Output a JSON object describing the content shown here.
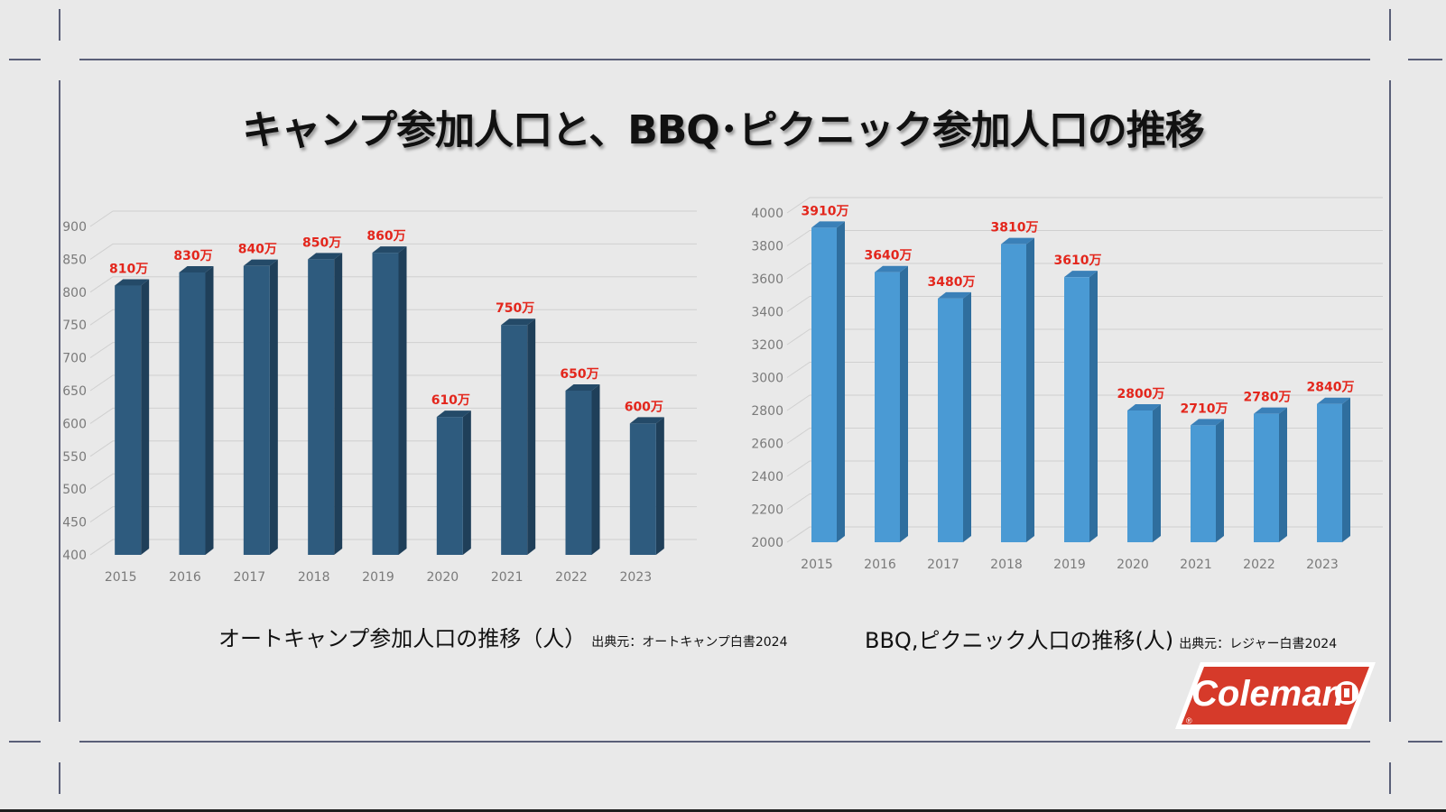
{
  "title": "キャンプ参加人口と、BBQ･ピクニック参加人口の推移",
  "colors": {
    "left_bar": "#2e5b7e",
    "left_bar_side": "#1f3f59",
    "left_bar_top": "#244a68",
    "right_bar": "#4a9ad4",
    "right_bar_side": "#2f6e9e",
    "right_bar_top": "#3a80b8",
    "label": "#e3261c",
    "logo": "#d63a2a"
  },
  "captions": {
    "left_main": "オートキャンプ参加人口の推移（人）",
    "left_source": "出典元：オートキャンプ白書2024",
    "right_main": "BBQ,ピクニック人口の推移(人)",
    "right_source": "出典元：レジャー白書2024"
  },
  "logo": {
    "text": "Coleman",
    "icon": "coleman-lantern-logo",
    "reg": "®"
  },
  "chart_data": [
    {
      "type": "bar",
      "title": "オートキャンプ参加人口の推移（人）",
      "categories": [
        "2015",
        "2016",
        "2017",
        "2018",
        "2019",
        "2020",
        "2021",
        "2022",
        "2023"
      ],
      "values": [
        810,
        830,
        840,
        850,
        860,
        610,
        750,
        650,
        600
      ],
      "data_labels": [
        "810万",
        "830万",
        "840万",
        "850万",
        "860万",
        "610万",
        "750万",
        "650万",
        "600万"
      ],
      "ylim": [
        400,
        900
      ],
      "yticks": [
        "400",
        "450",
        "500",
        "550",
        "600",
        "650",
        "700",
        "750",
        "800",
        "850",
        "900"
      ],
      "grid": true
    },
    {
      "type": "bar",
      "title": "BBQ,ピクニック人口の推移(人)",
      "categories": [
        "2015",
        "2016",
        "2017",
        "2018",
        "2019",
        "2020",
        "2021",
        "2022",
        "2023"
      ],
      "values": [
        3910,
        3640,
        3480,
        3810,
        3610,
        2800,
        2710,
        2780,
        2840
      ],
      "data_labels": [
        "3910万",
        "3640万",
        "3480万",
        "3810万",
        "3610万",
        "2800万",
        "2710万",
        "2780万",
        "2840万"
      ],
      "ylim": [
        2000,
        4000
      ],
      "yticks": [
        "2000",
        "2200",
        "2400",
        "2600",
        "2800",
        "3000",
        "3200",
        "3400",
        "3600",
        "3800",
        "4000"
      ],
      "grid": true
    }
  ]
}
